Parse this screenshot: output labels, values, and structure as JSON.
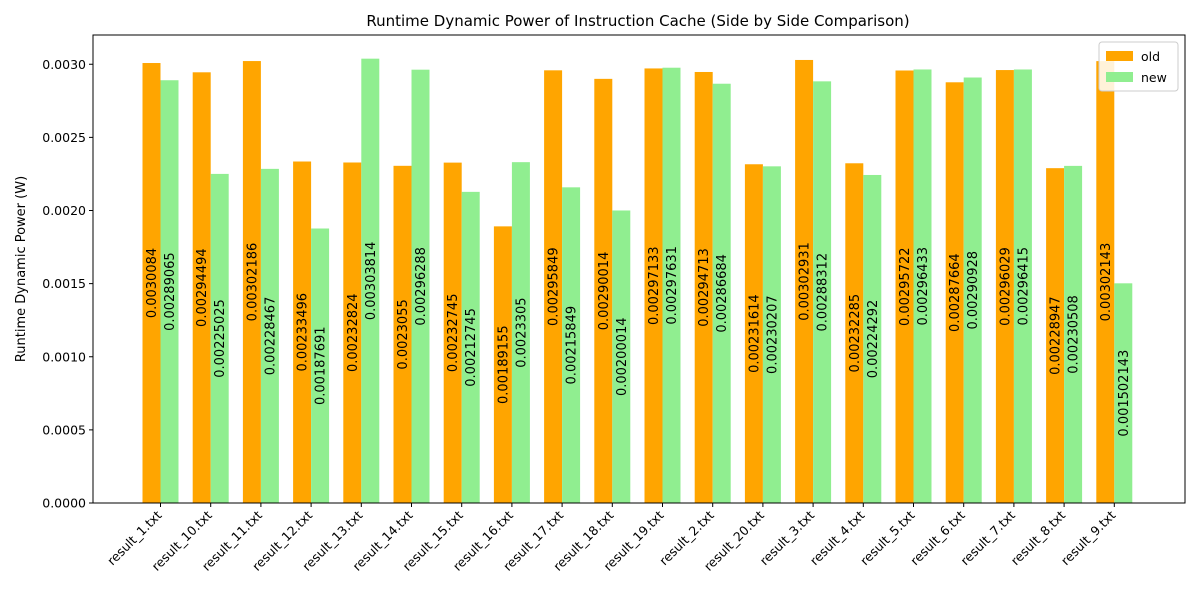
{
  "chart_data": {
    "type": "bar",
    "title": "Runtime Dynamic Power of Instruction Cache (Side by Side Comparison)",
    "xlabel": "",
    "ylabel": "Runtime Dynamic Power (W)",
    "ylim": [
      0,
      0.0032
    ],
    "yticks": [
      "0.0000",
      "0.0005",
      "0.0010",
      "0.0015",
      "0.0020",
      "0.0025",
      "0.0030"
    ],
    "ytick_values": [
      0,
      0.0005,
      0.001,
      0.0015,
      0.002,
      0.0025,
      0.003
    ],
    "grid": false,
    "legend_position": "top-right",
    "categories": [
      "result_1.txt",
      "result_10.txt",
      "result_11.txt",
      "result_12.txt",
      "result_13.txt",
      "result_14.txt",
      "result_15.txt",
      "result_16.txt",
      "result_17.txt",
      "result_18.txt",
      "result_19.txt",
      "result_2.txt",
      "result_20.txt",
      "result_3.txt",
      "result_4.txt",
      "result_5.txt",
      "result_6.txt",
      "result_7.txt",
      "result_8.txt",
      "result_9.txt"
    ],
    "series": [
      {
        "name": "old",
        "color": "#ffa500",
        "values": [
          0.0030084,
          0.00294494,
          0.00302186,
          0.00233496,
          0.00232824,
          0.0023055,
          0.00232745,
          0.00189155,
          0.00295849,
          0.00290014,
          0.00297133,
          0.00294713,
          0.00231614,
          0.00302931,
          0.00232285,
          0.00295722,
          0.00287664,
          0.00296029,
          0.00228947,
          0.00302143
        ],
        "labels": [
          "0.0030084",
          "0.00294494",
          "0.00302186",
          "0.00233496",
          "0.00232824",
          "0.0023055",
          "0.00232745",
          "0.00189155",
          "0.00295849",
          "0.00290014",
          "0.00297133",
          "0.00294713",
          "0.00231614",
          "0.00302931",
          "0.00232285",
          "0.00295722",
          "0.00287664",
          "0.00296029",
          "0.00228947",
          "0.00302143"
        ]
      },
      {
        "name": "new",
        "color": "#90ee90",
        "values": [
          0.00289065,
          0.00225025,
          0.00228467,
          0.00187691,
          0.00303814,
          0.00296288,
          0.00212745,
          0.0023305,
          0.00215849,
          0.00200014,
          0.00297631,
          0.00286684,
          0.00230207,
          0.00288312,
          0.00224292,
          0.00296433,
          0.00290928,
          0.00296415,
          0.00230508,
          0.00150214
        ],
        "labels": [
          "0.00289065",
          "0.00225025",
          "0.00228467",
          "0.00187691",
          "0.00303814",
          "0.00296288",
          "0.00212745",
          "0.0023305",
          "0.00215849",
          "0.00200014",
          "0.00297631",
          "0.00286684",
          "0.00230207",
          "0.00288312",
          "0.00224292",
          "0.00296433",
          "0.00290928",
          "0.00296415",
          "0.00230508",
          "0.001502143"
        ]
      }
    ]
  }
}
